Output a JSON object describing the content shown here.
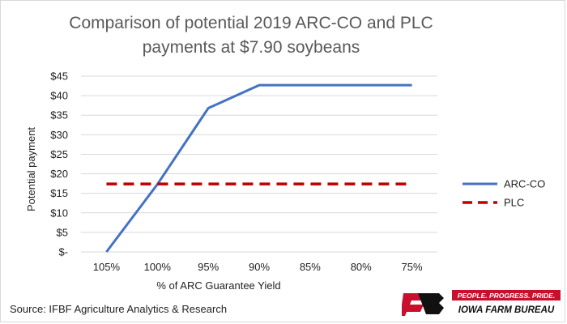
{
  "chart_data": {
    "type": "line",
    "title": "Comparison of potential 2019 ARC-CO and PLC payments at $7.90 soybeans",
    "title_lines": [
      "Comparison of potential 2019 ARC-CO and PLC",
      "payments at $7.90 soybeans"
    ],
    "xlabel": "% of ARC Guarantee  Yield",
    "ylabel": "Potential payment",
    "categories": [
      "105%",
      "100%",
      "95%",
      "90%",
      "85%",
      "80%",
      "75%"
    ],
    "y_ticks": [
      0,
      5,
      10,
      15,
      20,
      25,
      30,
      35,
      40,
      45
    ],
    "y_tick_labels": [
      "$-",
      "$5",
      "$10",
      "$15",
      "$20",
      "$25",
      "$30",
      "$35",
      "$40",
      "$45"
    ],
    "ylim": [
      0,
      45
    ],
    "grid": true,
    "legend_position": "right",
    "series": [
      {
        "name": "ARC-CO",
        "values": [
          0,
          17.3,
          36.8,
          42.7,
          42.7,
          42.7,
          42.7
        ],
        "color": "#4472c4",
        "style": "solid"
      },
      {
        "name": "PLC",
        "values": [
          17.4,
          17.4,
          17.4,
          17.4,
          17.4,
          17.4,
          17.4
        ],
        "color": "#c00000",
        "style": "dashed"
      }
    ]
  },
  "source": "Source: IFBF Agriculture Analytics & Research",
  "logo": {
    "tagline": "PEOPLE. PROGRESS. PRIDE.",
    "name": "IOWA FARM BUREAU",
    "colors": {
      "red": "#c8102e",
      "black": "#111111"
    }
  }
}
